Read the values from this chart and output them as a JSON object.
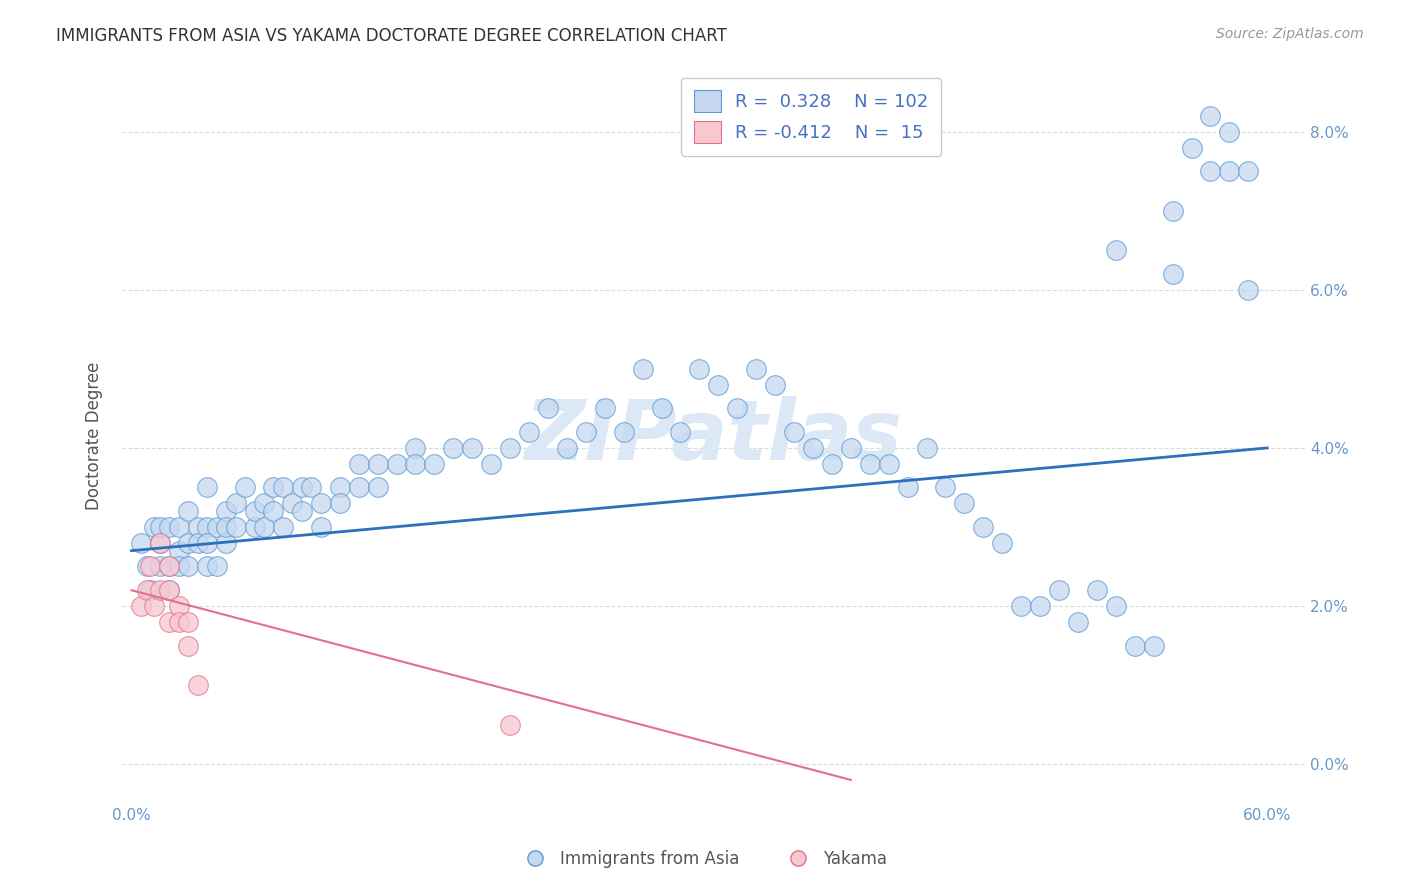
{
  "title": "IMMIGRANTS FROM ASIA VS YAKAMA DOCTORATE DEGREE CORRELATION CHART",
  "source": "Source: ZipAtlas.com",
  "xlabel_bottom": "Immigrants from Asia",
  "ylabel": "Doctorate Degree",
  "r_blue": 0.328,
  "n_blue": 102,
  "r_pink": -0.412,
  "n_pink": 15,
  "blue_color": "#c5d8f0",
  "blue_edge_color": "#5b9bd5",
  "blue_line_color": "#2e6fbe",
  "pink_color": "#f8c8d0",
  "pink_edge_color": "#e07090",
  "pink_line_color": "#e07090",
  "legend_text_color": "#4472c4",
  "watermark_color": "#dce8f5",
  "background_color": "#ffffff",
  "grid_color": "#cccccc",
  "xlim": [
    -0.005,
    0.62
  ],
  "ylim": [
    -0.005,
    0.088
  ],
  "xtick_positions": [
    0.0,
    0.1,
    0.2,
    0.3,
    0.4,
    0.5,
    0.6
  ],
  "ytick_positions": [
    0.0,
    0.02,
    0.04,
    0.06,
    0.08
  ],
  "blue_scatter_x": [
    0.005,
    0.008,
    0.01,
    0.012,
    0.015,
    0.015,
    0.015,
    0.02,
    0.02,
    0.02,
    0.025,
    0.025,
    0.025,
    0.03,
    0.03,
    0.03,
    0.035,
    0.035,
    0.04,
    0.04,
    0.04,
    0.04,
    0.045,
    0.045,
    0.05,
    0.05,
    0.05,
    0.055,
    0.055,
    0.06,
    0.065,
    0.065,
    0.07,
    0.07,
    0.075,
    0.075,
    0.08,
    0.08,
    0.085,
    0.09,
    0.09,
    0.095,
    0.1,
    0.1,
    0.11,
    0.11,
    0.12,
    0.12,
    0.13,
    0.13,
    0.14,
    0.15,
    0.15,
    0.16,
    0.17,
    0.18,
    0.19,
    0.2,
    0.21,
    0.22,
    0.23,
    0.24,
    0.25,
    0.26,
    0.27,
    0.28,
    0.29,
    0.3,
    0.31,
    0.32,
    0.33,
    0.34,
    0.35,
    0.36,
    0.37,
    0.38,
    0.39,
    0.4,
    0.41,
    0.42,
    0.43,
    0.44,
    0.45,
    0.46,
    0.47,
    0.48,
    0.49,
    0.5,
    0.51,
    0.52,
    0.53,
    0.54,
    0.55,
    0.56,
    0.57,
    0.58,
    0.59,
    0.52,
    0.55,
    0.57,
    0.58,
    0.59
  ],
  "blue_scatter_y": [
    0.028,
    0.025,
    0.022,
    0.03,
    0.025,
    0.028,
    0.03,
    0.022,
    0.025,
    0.03,
    0.027,
    0.03,
    0.025,
    0.028,
    0.032,
    0.025,
    0.03,
    0.028,
    0.025,
    0.03,
    0.035,
    0.028,
    0.03,
    0.025,
    0.032,
    0.028,
    0.03,
    0.033,
    0.03,
    0.035,
    0.03,
    0.032,
    0.033,
    0.03,
    0.035,
    0.032,
    0.035,
    0.03,
    0.033,
    0.035,
    0.032,
    0.035,
    0.033,
    0.03,
    0.035,
    0.033,
    0.038,
    0.035,
    0.038,
    0.035,
    0.038,
    0.04,
    0.038,
    0.038,
    0.04,
    0.04,
    0.038,
    0.04,
    0.042,
    0.045,
    0.04,
    0.042,
    0.045,
    0.042,
    0.05,
    0.045,
    0.042,
    0.05,
    0.048,
    0.045,
    0.05,
    0.048,
    0.042,
    0.04,
    0.038,
    0.04,
    0.038,
    0.038,
    0.035,
    0.04,
    0.035,
    0.033,
    0.03,
    0.028,
    0.02,
    0.02,
    0.022,
    0.018,
    0.022,
    0.02,
    0.015,
    0.015,
    0.07,
    0.078,
    0.082,
    0.075,
    0.06,
    0.065,
    0.062,
    0.075,
    0.08,
    0.075
  ],
  "pink_scatter_x": [
    0.005,
    0.008,
    0.01,
    0.012,
    0.015,
    0.015,
    0.02,
    0.02,
    0.02,
    0.025,
    0.025,
    0.03,
    0.03,
    0.035,
    0.2
  ],
  "pink_scatter_y": [
    0.02,
    0.022,
    0.025,
    0.02,
    0.028,
    0.022,
    0.025,
    0.022,
    0.018,
    0.02,
    0.018,
    0.018,
    0.015,
    0.01,
    0.005
  ],
  "blue_trend_x": [
    0.0,
    0.6
  ],
  "blue_trend_y": [
    0.027,
    0.04
  ],
  "pink_trend_x": [
    0.0,
    0.38
  ],
  "pink_trend_y": [
    0.022,
    -0.002
  ]
}
